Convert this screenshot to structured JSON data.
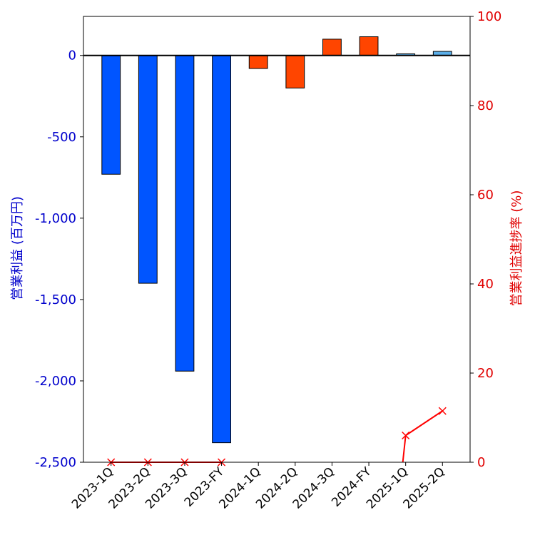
{
  "chart_data": {
    "type": "bar",
    "categories": [
      "2023-1Q",
      "2023-2Q",
      "2023-3Q",
      "2023-FY",
      "2024-1Q",
      "2024-2Q",
      "2024-3Q",
      "2024-FY",
      "2025-1Q",
      "2025-2Q"
    ],
    "series": [
      {
        "name": "営業利益",
        "axis": "left",
        "values": [
          -730,
          -1400,
          -1940,
          -2380,
          -80,
          -200,
          100,
          115,
          10,
          25
        ],
        "colors": [
          "#0055ff",
          "#0055ff",
          "#0055ff",
          "#0055ff",
          "#ff4500",
          "#ff4500",
          "#ff4500",
          "#ff4500",
          "#5aaee8",
          "#5aaee8"
        ]
      },
      {
        "name": "営業利益進捗率",
        "axis": "right",
        "type": "line",
        "marker": "x",
        "color": "#ff0000",
        "segments": [
          {
            "categories": [
              "2023-1Q",
              "2023-2Q",
              "2023-3Q",
              "2023-FY"
            ],
            "values": [
              0,
              0,
              0,
              0
            ]
          },
          {
            "categories": [
              "2025-1Q",
              "2025-2Q"
            ],
            "values": [
              6,
              11.5
            ]
          }
        ],
        "line_start_value": 0
      }
    ],
    "ylabel_left": "営業利益 (百万円)",
    "ylabel_right": "営業利益進捗率 (%)",
    "ylim_left": [
      -2500,
      240
    ],
    "ylim_right": [
      0,
      100
    ],
    "yticks_left": [
      0,
      -500,
      -1000,
      -1500,
      -2000,
      -2500
    ],
    "ytick_labels_left": [
      "0",
      "-500",
      "-1,000",
      "-1,500",
      "-2,000",
      "-2,500"
    ],
    "yticks_right": [
      0,
      20,
      40,
      60,
      80,
      100
    ],
    "ytick_labels_right": [
      "0",
      "20",
      "40",
      "60",
      "80",
      "100"
    ],
    "left_axis_color": "#0000cc",
    "right_axis_color": "#e00000",
    "zero_line": true,
    "grid": false
  }
}
